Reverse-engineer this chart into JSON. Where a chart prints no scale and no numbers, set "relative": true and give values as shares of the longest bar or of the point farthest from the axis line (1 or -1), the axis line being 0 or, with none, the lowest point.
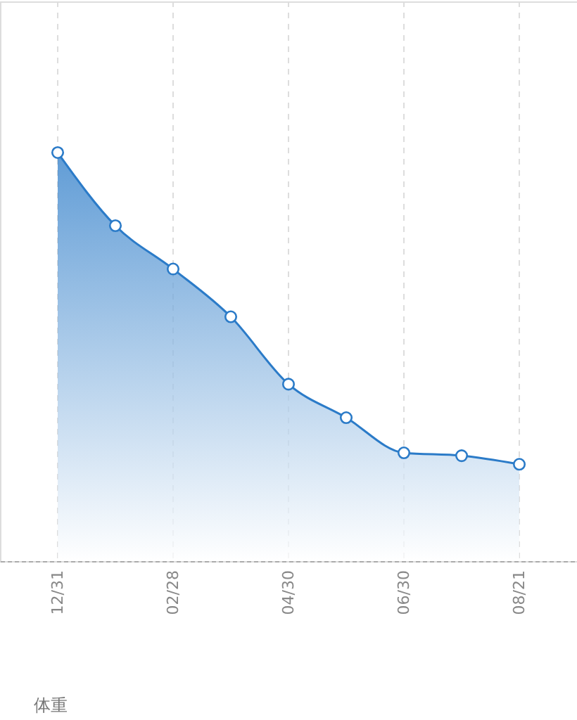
{
  "chart_data": {
    "type": "area",
    "relative": true,
    "categories": [
      "12/31",
      null,
      "02/28",
      null,
      "04/30",
      null,
      "06/30",
      null,
      "08/21"
    ],
    "series": [
      {
        "color": "#2b7bc8",
        "values": [
          1,
          0.821,
          0.715,
          0.598,
          0.433,
          0.351,
          0.265,
          0.258,
          0.237
        ]
      }
    ],
    "marker": "circle",
    "grid": "x",
    "annotations": [
      "体重"
    ]
  }
}
